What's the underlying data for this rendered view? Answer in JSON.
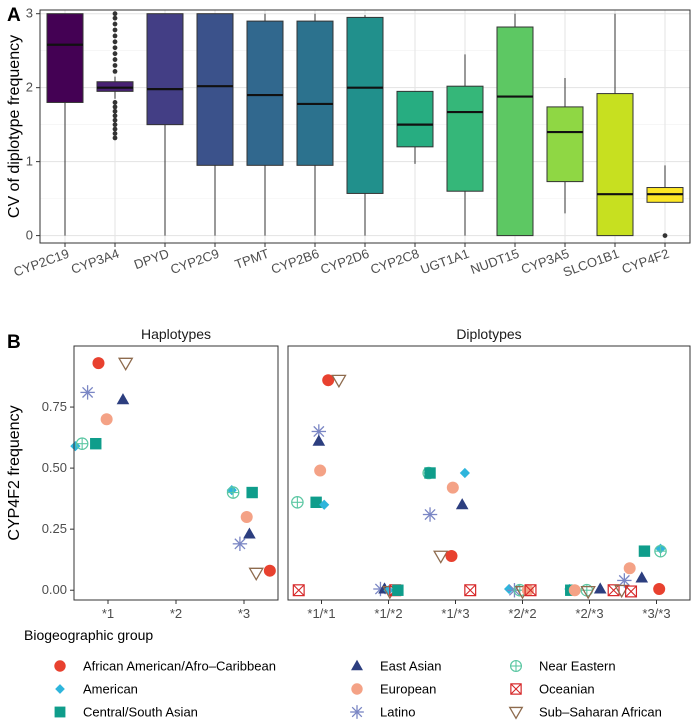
{
  "panels": {
    "a": {
      "letter": "A"
    },
    "b": {
      "letter": "B"
    }
  },
  "chart_data": [
    {
      "type": "box",
      "panel": "A",
      "ylabel": "CV of diplotype frequency",
      "xlabel": "",
      "ylim": [
        -0.1,
        3.05
      ],
      "yticks": [
        0,
        1,
        2,
        3
      ],
      "grid": true,
      "categories": [
        "CYP2C19",
        "CYP3A4",
        "DPYD",
        "CYP2C9",
        "TPMT",
        "CYP2B6",
        "CYP2D6",
        "CYP2C8",
        "UGT1A1",
        "NUDT15",
        "CYP3A5",
        "SLCO1B1",
        "CYP4F2"
      ],
      "boxes": [
        {
          "gene": "CYP2C19",
          "fill": "#440154",
          "wlo": 0.0,
          "q1": 1.8,
          "median": 2.58,
          "q3": 3.0,
          "whi": 3.0,
          "outliers": []
        },
        {
          "gene": "CYP3A4",
          "fill": "#482173",
          "wlo": 1.85,
          "q1": 1.95,
          "median": 2.0,
          "q3": 2.08,
          "whi": 2.15,
          "outliers": [
            1.32,
            1.38,
            1.44,
            1.5,
            1.56,
            1.62,
            1.68,
            1.74,
            1.8,
            2.22,
            2.3,
            2.38,
            2.46,
            2.54,
            2.62,
            2.7,
            2.78,
            2.86,
            2.94,
            3.0
          ]
        },
        {
          "gene": "DPYD",
          "fill": "#433E85",
          "wlo": 0.0,
          "q1": 1.5,
          "median": 1.98,
          "q3": 3.0,
          "whi": 3.0,
          "outliers": []
        },
        {
          "gene": "CYP2C9",
          "fill": "#3B528B",
          "wlo": 0.0,
          "q1": 0.95,
          "median": 2.02,
          "q3": 3.0,
          "whi": 3.0,
          "outliers": []
        },
        {
          "gene": "TPMT",
          "fill": "#31688E",
          "wlo": 0.0,
          "q1": 0.95,
          "median": 1.9,
          "q3": 2.9,
          "whi": 3.0,
          "outliers": []
        },
        {
          "gene": "CYP2B6",
          "fill": "#2C728E",
          "wlo": 0.0,
          "q1": 0.95,
          "median": 1.78,
          "q3": 2.9,
          "whi": 3.0,
          "outliers": []
        },
        {
          "gene": "CYP2D6",
          "fill": "#21908C",
          "wlo": 0.0,
          "q1": 0.57,
          "median": 2.0,
          "q3": 2.95,
          "whi": 2.98,
          "outliers": []
        },
        {
          "gene": "CYP2C8",
          "fill": "#27AD81",
          "wlo": 0.97,
          "q1": 1.2,
          "median": 1.5,
          "q3": 1.95,
          "whi": 1.95,
          "outliers": []
        },
        {
          "gene": "UGT1A1",
          "fill": "#35B779",
          "wlo": 0.0,
          "q1": 0.6,
          "median": 1.67,
          "q3": 2.02,
          "whi": 2.45,
          "outliers": []
        },
        {
          "gene": "NUDT15",
          "fill": "#5DC863",
          "wlo": 0.0,
          "q1": 0.0,
          "median": 1.88,
          "q3": 2.82,
          "whi": 3.0,
          "outliers": []
        },
        {
          "gene": "CYP3A5",
          "fill": "#8FD744",
          "wlo": 0.3,
          "q1": 0.73,
          "median": 1.4,
          "q3": 1.74,
          "whi": 2.13,
          "outliers": []
        },
        {
          "gene": "SLCO1B1",
          "fill": "#C7E020",
          "wlo": 0.0,
          "q1": 0.0,
          "median": 0.56,
          "q3": 1.92,
          "whi": 3.0,
          "outliers": []
        },
        {
          "gene": "CYP4F2",
          "fill": "#FDE725",
          "wlo": 0.45,
          "q1": 0.45,
          "median": 0.56,
          "q3": 0.65,
          "whi": 0.95,
          "outliers": [
            0.0
          ]
        }
      ]
    },
    {
      "type": "scatter",
      "panel": "B",
      "ylabel": "CYP4F2 frequency",
      "ylim": [
        -0.04,
        1.0
      ],
      "yticks": [
        "0.00",
        "0.25",
        "0.50",
        "0.75"
      ],
      "yticks_values": [
        0,
        0.25,
        0.5,
        0.75
      ],
      "legend_title": "Biogeographic group",
      "legend_position": "bottom",
      "groups": [
        {
          "name": "African American/Afro–Caribbean",
          "shape": "circle",
          "color": "#E8412F"
        },
        {
          "name": "American",
          "shape": "diamond",
          "color": "#2EB5DC"
        },
        {
          "name": "Central/South Asian",
          "shape": "square",
          "color": "#0F9D8B"
        },
        {
          "name": "East Asian",
          "shape": "triangle",
          "color": "#2C3E7F"
        },
        {
          "name": "European",
          "shape": "circle",
          "color": "#F4A286"
        },
        {
          "name": "Latino",
          "shape": "asterisk",
          "color": "#7A86C4"
        },
        {
          "name": "Near Eastern",
          "shape": "circleplus",
          "color": "#5CC7A3"
        },
        {
          "name": "Oceanian",
          "shape": "boxx",
          "color": "#D62728"
        },
        {
          "name": "Sub–Saharan African",
          "shape": "triangledown",
          "color": "#8E6B4E"
        }
      ],
      "facets": [
        {
          "title": "Haplotypes",
          "categories": [
            "*1",
            "*2",
            "*3"
          ],
          "points": [
            {
              "g": 0,
              "cat": 0,
              "dx": -0.14,
              "y": 0.93
            },
            {
              "g": 8,
              "cat": 0,
              "dx": 0.26,
              "y": 0.93
            },
            {
              "g": 5,
              "cat": 0,
              "dx": -0.3,
              "y": 0.81
            },
            {
              "g": 3,
              "cat": 0,
              "dx": 0.22,
              "y": 0.78
            },
            {
              "g": 4,
              "cat": 0,
              "dx": -0.02,
              "y": 0.7
            },
            {
              "g": 1,
              "cat": 0,
              "dx": -0.48,
              "y": 0.59
            },
            {
              "g": 6,
              "cat": 0,
              "dx": -0.38,
              "y": 0.6
            },
            {
              "g": 2,
              "cat": 0,
              "dx": -0.18,
              "y": 0.6
            },
            {
              "g": 1,
              "cat": 2,
              "dx": -0.18,
              "y": 0.41
            },
            {
              "g": 6,
              "cat": 2,
              "dx": -0.16,
              "y": 0.4
            },
            {
              "g": 2,
              "cat": 2,
              "dx": 0.12,
              "y": 0.4
            },
            {
              "g": 4,
              "cat": 2,
              "dx": 0.04,
              "y": 0.3
            },
            {
              "g": 3,
              "cat": 2,
              "dx": 0.08,
              "y": 0.23
            },
            {
              "g": 5,
              "cat": 2,
              "dx": -0.06,
              "y": 0.19
            },
            {
              "g": 8,
              "cat": 2,
              "dx": 0.18,
              "y": 0.07
            },
            {
              "g": 0,
              "cat": 2,
              "dx": 0.38,
              "y": 0.08
            }
          ]
        },
        {
          "title": "Diplotypes",
          "categories": [
            "*1/*1",
            "*1/*2",
            "*1/*3",
            "*2/*2",
            "*2/*3",
            "*3/*3"
          ],
          "points": [
            {
              "g": 0,
              "cat": 0,
              "dx": 0.1,
              "y": 0.86
            },
            {
              "g": 8,
              "cat": 0,
              "dx": 0.26,
              "y": 0.86
            },
            {
              "g": 5,
              "cat": 0,
              "dx": -0.04,
              "y": 0.65
            },
            {
              "g": 3,
              "cat": 0,
              "dx": -0.04,
              "y": 0.61
            },
            {
              "g": 4,
              "cat": 0,
              "dx": -0.02,
              "y": 0.49
            },
            {
              "g": 6,
              "cat": 0,
              "dx": -0.36,
              "y": 0.36
            },
            {
              "g": 2,
              "cat": 0,
              "dx": -0.08,
              "y": 0.36
            },
            {
              "g": 1,
              "cat": 0,
              "dx": 0.04,
              "y": 0.35
            },
            {
              "g": 7,
              "cat": 0,
              "dx": -0.34,
              "y": 0.0
            },
            {
              "g": 5,
              "cat": 1,
              "dx": -0.12,
              "y": 0.005
            },
            {
              "g": 3,
              "cat": 1,
              "dx": -0.06,
              "y": 0.005
            },
            {
              "g": 1,
              "cat": 1,
              "dx": 0.0,
              "y": 0.0
            },
            {
              "g": 8,
              "cat": 1,
              "dx": 0.02,
              "y": -0.005
            },
            {
              "g": 7,
              "cat": 1,
              "dx": 0.1,
              "y": 0.0
            },
            {
              "g": 2,
              "cat": 1,
              "dx": 0.14,
              "y": 0.0
            },
            {
              "g": 6,
              "cat": 2,
              "dx": -0.4,
              "y": 0.48
            },
            {
              "g": 2,
              "cat": 2,
              "dx": -0.38,
              "y": 0.48
            },
            {
              "g": 1,
              "cat": 2,
              "dx": 0.14,
              "y": 0.48
            },
            {
              "g": 4,
              "cat": 2,
              "dx": -0.04,
              "y": 0.42
            },
            {
              "g": 3,
              "cat": 2,
              "dx": 0.1,
              "y": 0.35
            },
            {
              "g": 5,
              "cat": 2,
              "dx": -0.38,
              "y": 0.31
            },
            {
              "g": 8,
              "cat": 2,
              "dx": -0.22,
              "y": 0.14
            },
            {
              "g": 0,
              "cat": 2,
              "dx": -0.06,
              "y": 0.14
            },
            {
              "g": 7,
              "cat": 2,
              "dx": 0.22,
              "y": 0.0
            },
            {
              "g": 1,
              "cat": 3,
              "dx": -0.2,
              "y": 0.005
            },
            {
              "g": 5,
              "cat": 3,
              "dx": -0.12,
              "y": 0.0
            },
            {
              "g": 6,
              "cat": 3,
              "dx": -0.04,
              "y": 0.0
            },
            {
              "g": 8,
              "cat": 3,
              "dx": 0.0,
              "y": -0.005
            },
            {
              "g": 4,
              "cat": 3,
              "dx": 0.08,
              "y": 0.0
            },
            {
              "g": 7,
              "cat": 3,
              "dx": 0.12,
              "y": 0.0
            },
            {
              "g": 1,
              "cat": 4,
              "dx": -0.3,
              "y": 0.005
            },
            {
              "g": 2,
              "cat": 4,
              "dx": -0.28,
              "y": 0.0
            },
            {
              "g": 4,
              "cat": 4,
              "dx": -0.22,
              "y": 0.0
            },
            {
              "g": 6,
              "cat": 4,
              "dx": -0.04,
              "y": 0.0
            },
            {
              "g": 8,
              "cat": 4,
              "dx": -0.02,
              "y": -0.005
            },
            {
              "g": 3,
              "cat": 4,
              "dx": 0.16,
              "y": 0.005
            },
            {
              "g": 7,
              "cat": 4,
              "dx": 0.36,
              "y": 0.0
            },
            {
              "g": 4,
              "cat": 5,
              "dx": -0.4,
              "y": 0.09
            },
            {
              "g": 5,
              "cat": 5,
              "dx": -0.48,
              "y": 0.04
            },
            {
              "g": 2,
              "cat": 5,
              "dx": -0.18,
              "y": 0.16
            },
            {
              "g": 3,
              "cat": 5,
              "dx": -0.22,
              "y": 0.05
            },
            {
              "g": 1,
              "cat": 5,
              "dx": 0.06,
              "y": 0.17
            },
            {
              "g": 6,
              "cat": 5,
              "dx": 0.06,
              "y": 0.16
            },
            {
              "g": 8,
              "cat": 5,
              "dx": -0.52,
              "y": 0.0
            },
            {
              "g": 7,
              "cat": 5,
              "dx": -0.38,
              "y": -0.005
            },
            {
              "g": 0,
              "cat": 5,
              "dx": 0.04,
              "y": 0.005
            }
          ]
        }
      ]
    }
  ]
}
